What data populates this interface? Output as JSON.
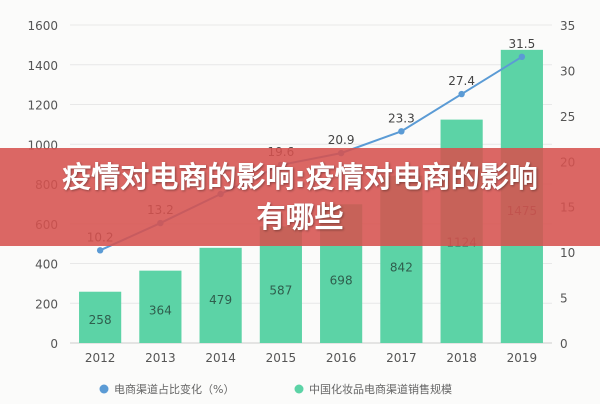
{
  "banner": {
    "title": "疫情对电商的影响:疫情对电商的影响有哪些"
  },
  "colors": {
    "bar": "#5cd3a6",
    "line": "#5b9bd5",
    "axis_text": "#555555",
    "grid": "#e8e8e8"
  },
  "chart_data": {
    "type": "bar",
    "title": "",
    "categories": [
      "2012",
      "2013",
      "2014",
      "2015",
      "2016",
      "2017",
      "2018",
      "2019"
    ],
    "series": [
      {
        "name": "中国化妆品电商渠道销售规模",
        "kind": "bar",
        "axis": "left",
        "values": [
          258,
          364,
          479,
          587,
          698,
          842,
          1124,
          1475
        ],
        "labels": [
          "258",
          "364",
          "479",
          "587",
          "698",
          "842",
          "1124",
          "1475"
        ]
      },
      {
        "name": "电商渠道占比变化（%）",
        "kind": "line",
        "axis": "right",
        "values": [
          10.2,
          13.2,
          16.4,
          19.6,
          20.9,
          23.3,
          27.4,
          31.5
        ],
        "labels": [
          "10.2",
          "13.2",
          "",
          "19.6",
          "20.9",
          "23.3",
          "27.4",
          "31.5"
        ]
      }
    ],
    "y_left": {
      "ylim": [
        0,
        1600
      ],
      "ticks": [
        "0",
        "200",
        "400",
        "600",
        "800",
        "1000",
        "1200",
        "1400",
        "1600"
      ]
    },
    "y_right": {
      "ylim": [
        0,
        35
      ],
      "ticks": [
        "0",
        "5",
        "10",
        "15",
        "20",
        "25",
        "30",
        "35"
      ]
    },
    "grid": true,
    "legend": "bottom"
  }
}
